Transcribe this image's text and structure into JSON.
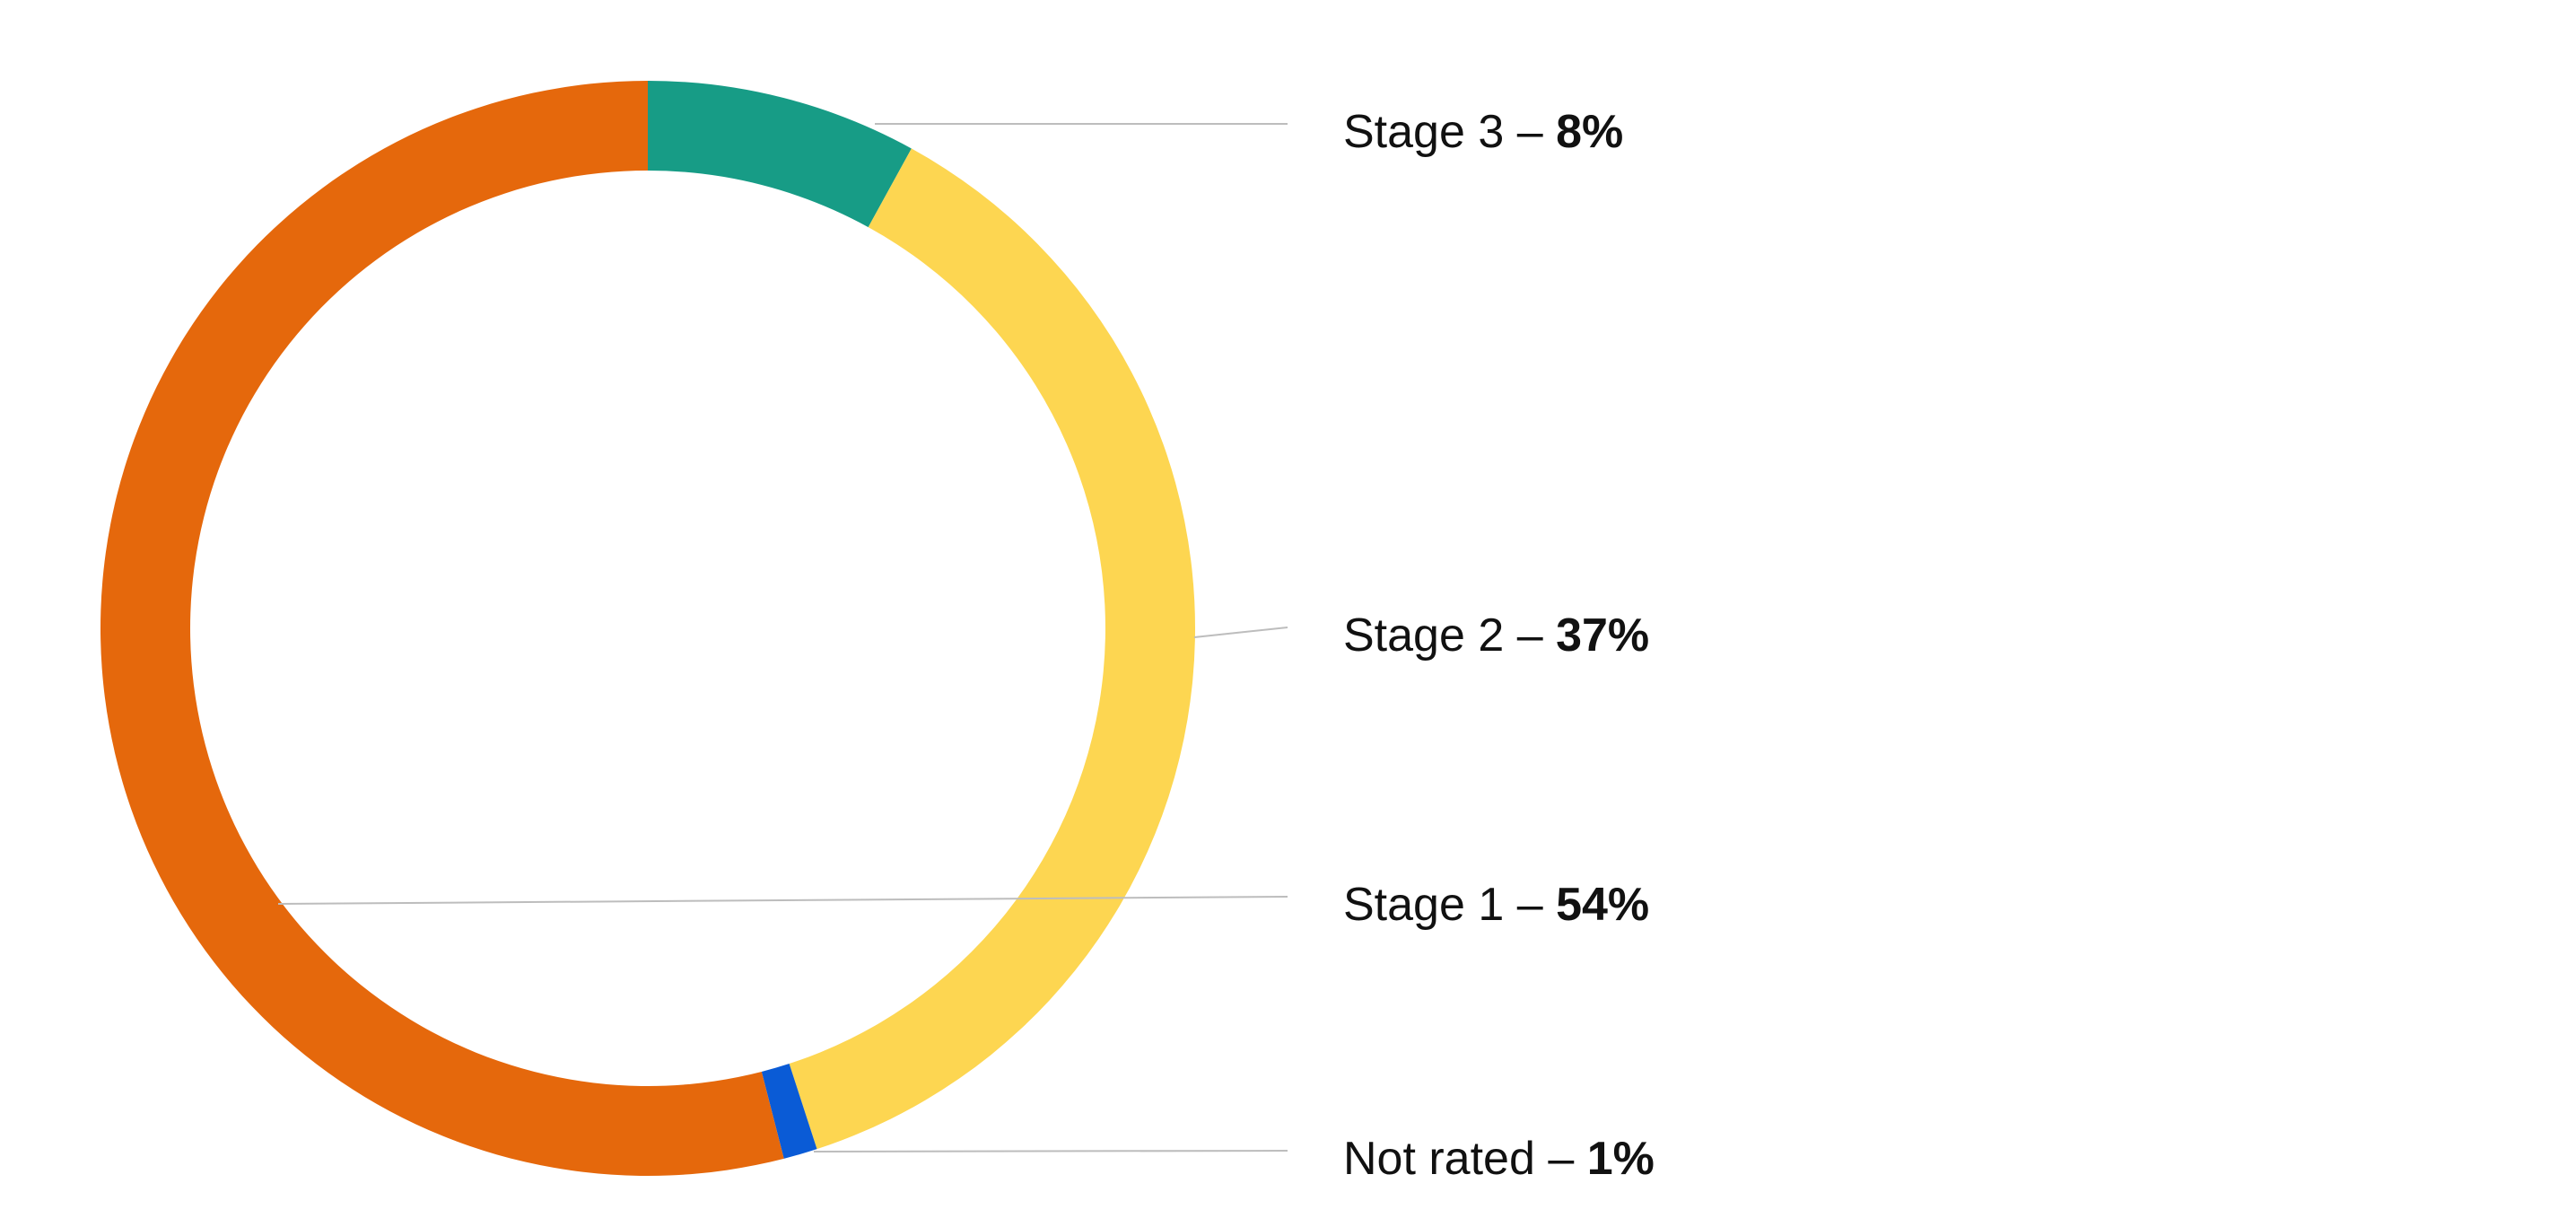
{
  "chart_data": {
    "type": "pie",
    "title": "",
    "start_at_top": true,
    "direction": "clockwise",
    "label_separator": " – ",
    "series": [
      {
        "name": "Stage 3",
        "value": 8,
        "value_label": "8%",
        "color": "#179C86"
      },
      {
        "name": "Stage 2",
        "value": 37,
        "value_label": "37%",
        "color": "#FDD651"
      },
      {
        "name": "Not rated",
        "value": 1,
        "value_label": "1%",
        "color": "#0A5BD6"
      },
      {
        "name": "Stage 1",
        "value": 54,
        "value_label": "54%",
        "color": "#E5680C"
      }
    ]
  }
}
